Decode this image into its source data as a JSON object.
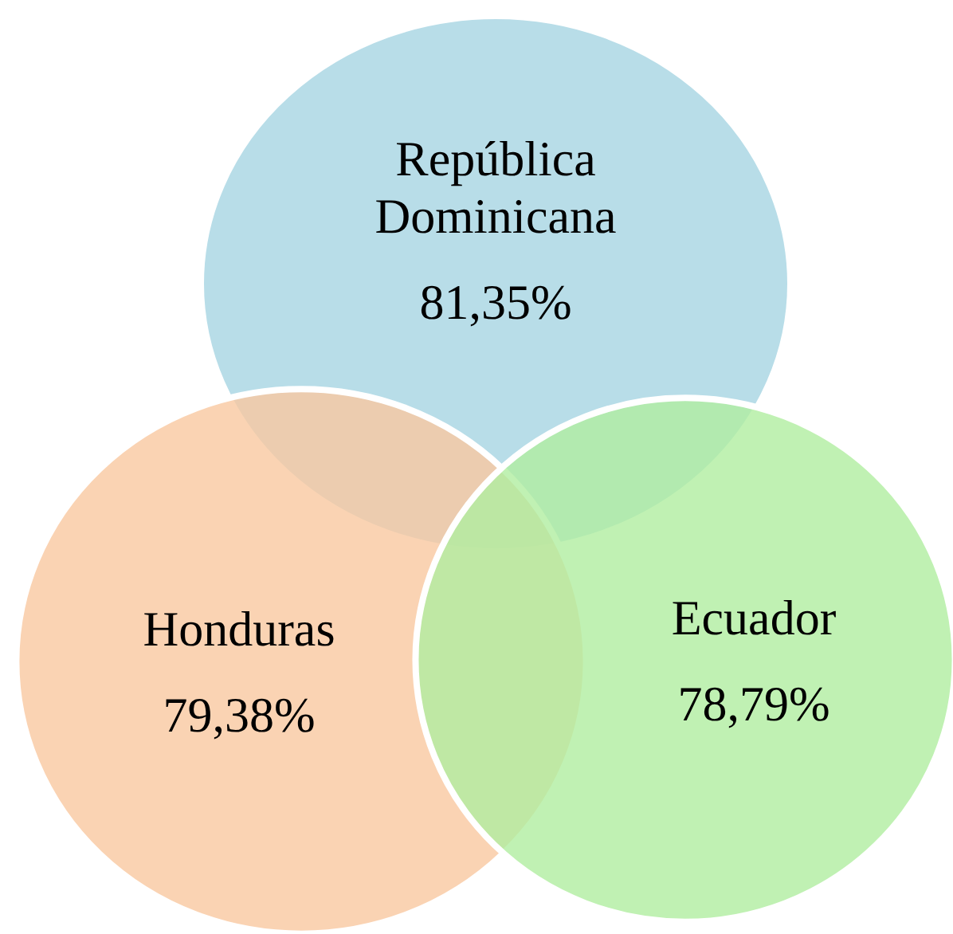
{
  "chart_data": {
    "type": "other",
    "categories": [
      "República Dominicana",
      "Honduras",
      "Ecuador"
    ],
    "values": [
      81.35,
      79.38,
      78.79
    ],
    "value_labels": [
      "81,35%",
      "79,38%",
      "78,79%"
    ],
    "colors": [
      "#a6d5e2",
      "#f9c8a0",
      "#b0eea0"
    ]
  }
}
